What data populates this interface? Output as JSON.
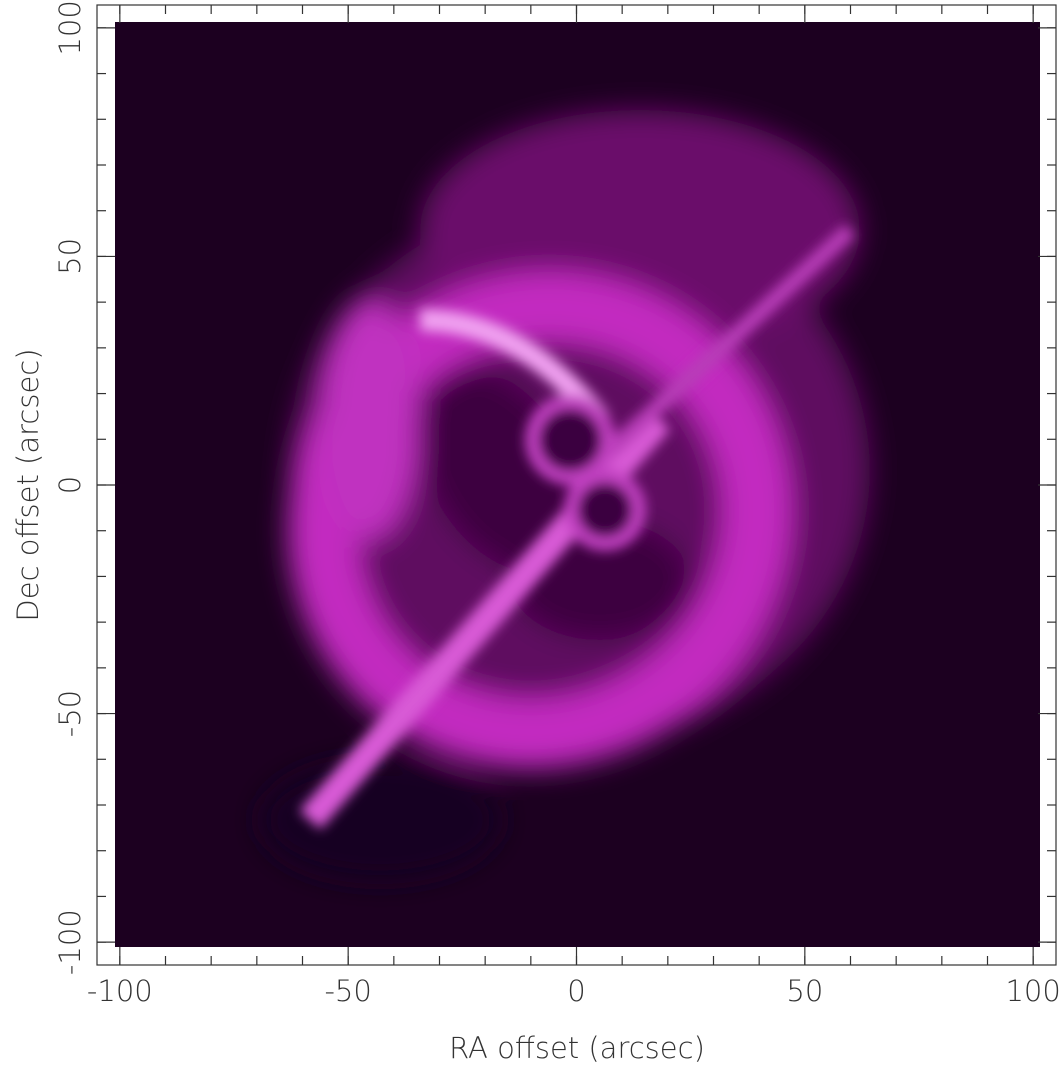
{
  "chart_data": {
    "type": "image",
    "xlabel": "RA offset (arcsec)",
    "ylabel": "Dec offset (arcsec)",
    "xlim": [
      -105,
      105
    ],
    "ylim": [
      -105,
      105
    ],
    "xticks": [
      -100,
      -50,
      0,
      50,
      100
    ],
    "yticks": [
      -100,
      -50,
      0,
      50,
      100
    ],
    "xminorticks": [
      -100,
      -90,
      -80,
      -70,
      -60,
      -50,
      -40,
      -30,
      -20,
      -10,
      0,
      10,
      20,
      30,
      40,
      50,
      60,
      70,
      80,
      90,
      100
    ],
    "yminorticks": [
      -100,
      -90,
      -80,
      -70,
      -60,
      -50,
      -40,
      -30,
      -20,
      -10,
      0,
      10,
      20,
      30,
      40,
      50,
      60,
      70,
      80,
      90,
      100
    ]
  }
}
